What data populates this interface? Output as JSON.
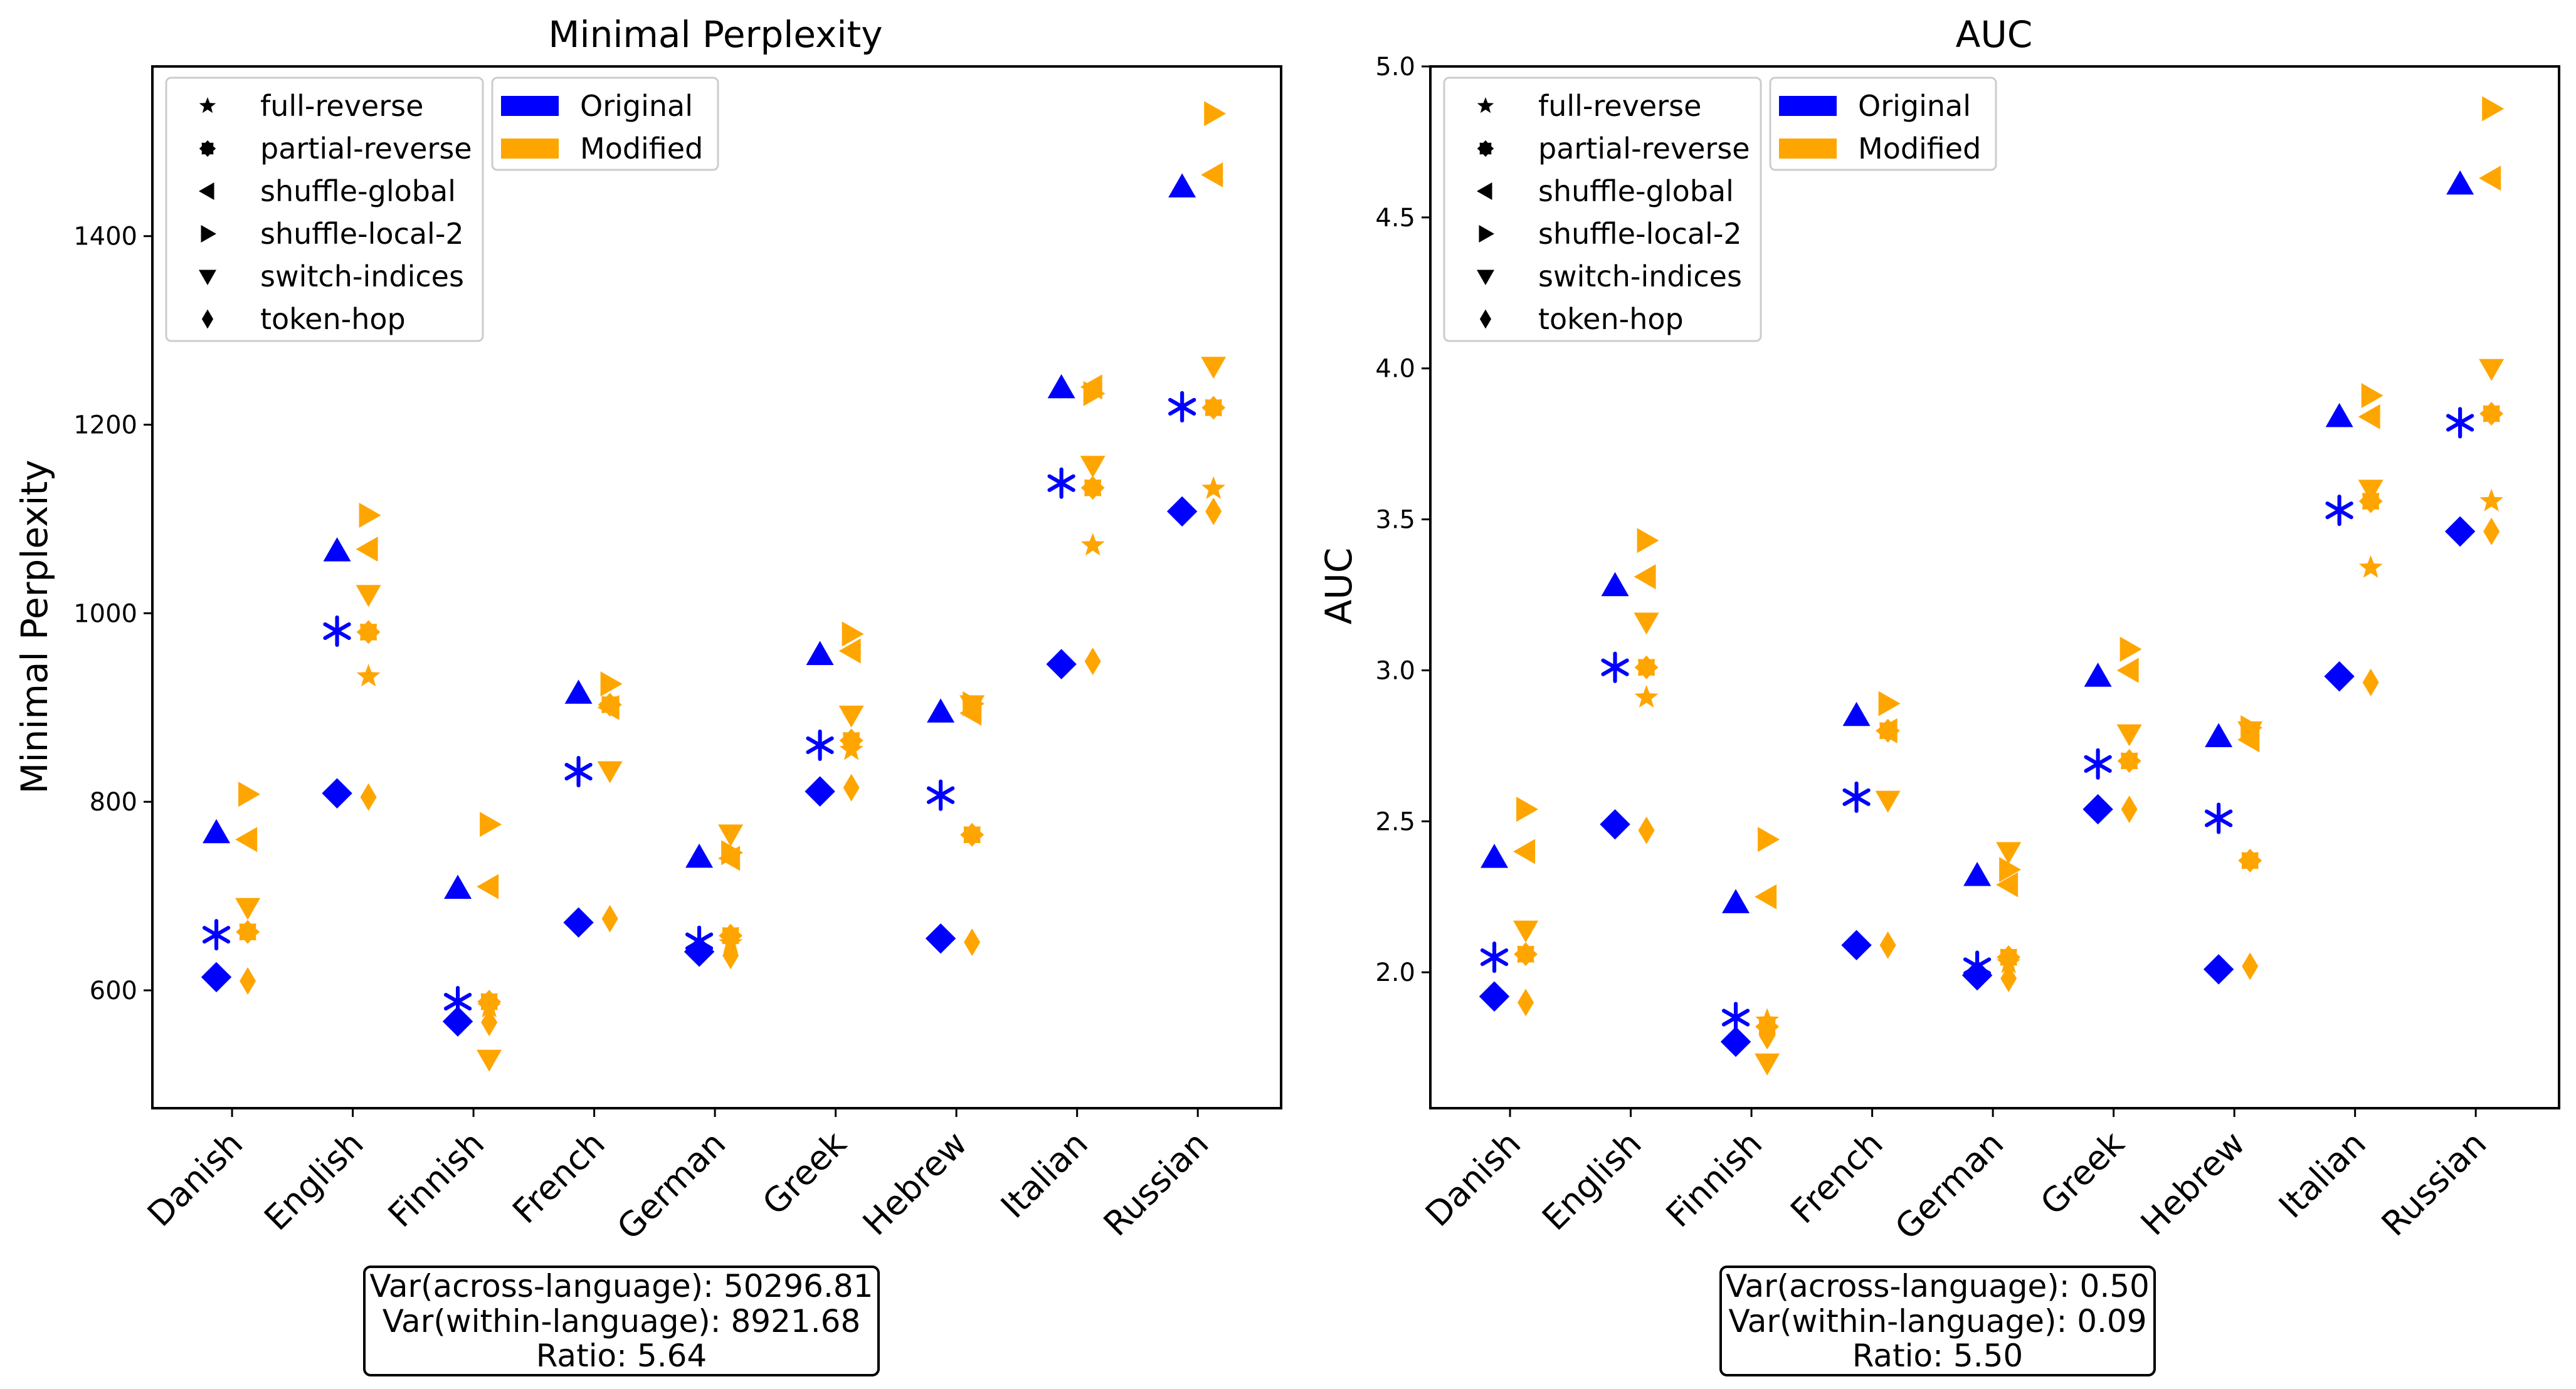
{
  "chart_data": [
    {
      "type": "scatter",
      "title": "Minimal Perplexity",
      "xlabel": "",
      "ylabel": "Minimal Perplexity",
      "ylim": [
        475,
        1580
      ],
      "yticks": [
        600,
        800,
        1000,
        1200,
        1400
      ],
      "categories": [
        "Danish",
        "English",
        "Finnish",
        "French",
        "German",
        "Greek",
        "Hebrew",
        "Italian",
        "Russian"
      ],
      "grid": false,
      "legend_markers": {
        "placement": "top-left",
        "entries": [
          {
            "label": "full-reverse",
            "marker": "star"
          },
          {
            "label": "partial-reverse",
            "marker": "octagram"
          },
          {
            "label": "shuffle-global",
            "marker": "triangle-left"
          },
          {
            "label": "shuffle-local-2",
            "marker": "triangle-right"
          },
          {
            "label": "switch-indices",
            "marker": "triangle-down"
          },
          {
            "label": "token-hop",
            "marker": "thin-diamond"
          }
        ]
      },
      "legend_colors": {
        "placement": "top-left",
        "entries": [
          {
            "label": "Original",
            "color": "#0000ff"
          },
          {
            "label": "Modified",
            "color": "#ffa500"
          }
        ]
      },
      "original": {
        "shuffle": [
          767,
          1066,
          708,
          915,
          741,
          956,
          895,
          1239,
          1452
        ],
        "reverse": [
          659,
          981,
          588,
          832,
          652,
          860,
          807,
          1138,
          1219
        ],
        "token-hop": [
          614,
          809,
          567,
          672,
          641,
          811,
          655,
          946,
          1108
        ]
      },
      "modified": {
        "shuffle-local-2": [
          808,
          1104,
          776,
          925,
          746,
          978,
          904,
          1233,
          1530
        ],
        "shuffle-global": [
          760,
          1068,
          710,
          900,
          740,
          960,
          894,
          1240,
          1465
        ],
        "switch-indices": [
          688,
          1020,
          527,
          833,
          766,
          892,
          903,
          1157,
          1262
        ],
        "partial-reverse": [
          662,
          980,
          588,
          903,
          658,
          865,
          765,
          1133,
          1218
        ],
        "full-reverse": [
          null,
          933,
          582,
          null,
          650,
          855,
          null,
          1072,
          1132
        ],
        "token-hop": [
          610,
          805,
          566,
          676,
          637,
          815,
          651,
          949,
          1108
        ]
      },
      "annotation": {
        "line1": "Var(across-language): 50296.81",
        "line2": "Var(within-language): 8921.68",
        "line3": "Ratio: 5.64"
      }
    },
    {
      "type": "scatter",
      "title": "AUC",
      "xlabel": "",
      "ylabel": "AUC",
      "ylim": [
        1.55,
        5.0
      ],
      "yticks": [
        2.0,
        2.5,
        3.0,
        3.5,
        4.0,
        4.5,
        5.0
      ],
      "categories": [
        "Danish",
        "English",
        "Finnish",
        "French",
        "German",
        "Greek",
        "Hebrew",
        "Italian",
        "Russian"
      ],
      "grid": false,
      "legend_markers": {
        "placement": "top-left",
        "entries": [
          {
            "label": "full-reverse",
            "marker": "star"
          },
          {
            "label": "partial-reverse",
            "marker": "octagram"
          },
          {
            "label": "shuffle-global",
            "marker": "triangle-left"
          },
          {
            "label": "shuffle-local-2",
            "marker": "triangle-right"
          },
          {
            "label": "switch-indices",
            "marker": "triangle-down"
          },
          {
            "label": "token-hop",
            "marker": "thin-diamond"
          }
        ]
      },
      "legend_colors": {
        "placement": "top-left",
        "entries": [
          {
            "label": "Original",
            "color": "#0000ff"
          },
          {
            "label": "Modified",
            "color": "#ffa500"
          }
        ]
      },
      "original": {
        "shuffle": [
          2.38,
          3.28,
          2.23,
          2.85,
          2.32,
          2.98,
          2.78,
          3.84,
          4.61
        ],
        "reverse": [
          2.05,
          3.01,
          1.85,
          2.58,
          2.02,
          2.69,
          2.51,
          3.53,
          3.82
        ],
        "token-hop": [
          1.92,
          2.49,
          1.77,
          2.09,
          1.99,
          2.54,
          2.01,
          2.98,
          3.46
        ]
      },
      "modified": {
        "shuffle-local-2": [
          2.54,
          3.43,
          2.44,
          2.89,
          2.34,
          3.07,
          2.81,
          3.91,
          4.86
        ],
        "shuffle-global": [
          2.4,
          3.31,
          2.25,
          2.8,
          2.29,
          3.0,
          2.77,
          3.84,
          4.63
        ],
        "switch-indices": [
          2.14,
          3.16,
          1.7,
          2.57,
          2.4,
          2.79,
          2.8,
          3.6,
          4.0
        ],
        "partial-reverse": [
          2.06,
          3.01,
          1.82,
          2.8,
          2.05,
          2.7,
          2.37,
          3.56,
          3.85
        ],
        "full-reverse": [
          null,
          2.91,
          1.84,
          null,
          2.03,
          null,
          null,
          3.34,
          3.56
        ],
        "token-hop": [
          1.9,
          2.47,
          1.79,
          2.09,
          1.98,
          2.54,
          2.02,
          2.96,
          3.46
        ]
      },
      "annotation": {
        "line1": "Var(across-language): 0.50",
        "line2": "Var(within-language): 0.09",
        "line3": "Ratio: 5.50"
      }
    }
  ]
}
